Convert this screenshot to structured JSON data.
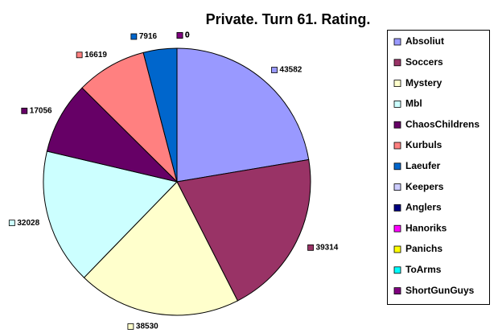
{
  "chart_data": {
    "type": "pie",
    "title": "Private. Turn 61. Rating.",
    "categories": [
      "Absoliut",
      "Soccers",
      "Mystery",
      "Mbl",
      "ChaosChildrens",
      "Kurbuls",
      "Laeufer",
      "Keepers",
      "Anglers",
      "Hanoriks",
      "Panichs",
      "ToArms",
      "ShortGunGuys"
    ],
    "values": [
      43582,
      39314,
      38530,
      32028,
      17056,
      16619,
      7916,
      0,
      0,
      0,
      0,
      0,
      0
    ],
    "colors": [
      "#9999ff",
      "#993366",
      "#ffffcc",
      "#ccffff",
      "#660066",
      "#ff8080",
      "#0066cc",
      "#ccccff",
      "#000080",
      "#ff00ff",
      "#ffff00",
      "#00ffff",
      "#800080"
    ],
    "legend": "right"
  }
}
